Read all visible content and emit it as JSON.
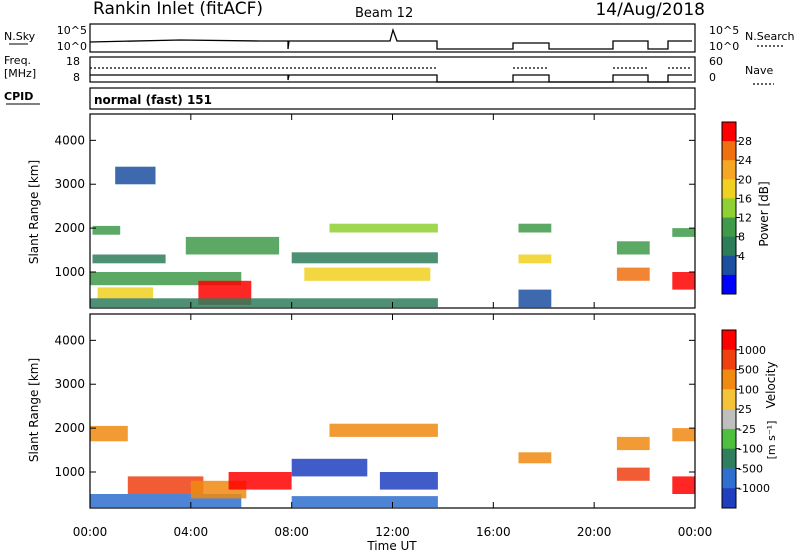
{
  "header": {
    "station": "Rankin Inlet (fitACF)",
    "beam": "Beam 12",
    "date": "14/Aug/2018"
  },
  "params_panels": {
    "nsky_label": "N.Sky",
    "nsearch_label": "N.Search",
    "nsky_ticks": [
      "10^5",
      "10^0"
    ],
    "nsearch_ticks": [
      "10^5",
      "10^0"
    ],
    "freq_label": "Freq.",
    "freq_unit": "[MHz]",
    "freq_ticks": [
      "18",
      "8"
    ],
    "nave_label": "Nave",
    "nave_ticks": [
      "60",
      "0"
    ],
    "cpid_label": "CPID",
    "cpid_value": "normal (fast) 151"
  },
  "chart_data": [
    {
      "type": "heatmap",
      "id": "power",
      "ylabel": "Slant Range [km]",
      "yticks": [
        "4000",
        "3000",
        "2000",
        "1000"
      ],
      "ylim": [
        180,
        4600
      ],
      "xlim_hours": [
        0,
        24
      ],
      "colorbar_label": "Power [dB]",
      "colorbar_ticks": [
        "28",
        "24",
        "20",
        "16",
        "12",
        "8",
        "4"
      ],
      "colors": [
        "#0000ff",
        "#1c4fa0",
        "#2e7d5a",
        "#3f9a4a",
        "#8fd033",
        "#f0d020",
        "#f5a623",
        "#f07010",
        "#ff0000"
      ],
      "data_gaps_hours": [
        [
          13.85,
          17.0
        ],
        [
          18.3,
          20.9
        ],
        [
          22.25,
          23.1
        ]
      ],
      "bands": [
        {
          "t": [
            0.1,
            1.2
          ],
          "r": [
            1850,
            2050
          ],
          "v": 14
        },
        {
          "t": [
            0.1,
            3.0
          ],
          "r": [
            1200,
            1400
          ],
          "v": 9
        },
        {
          "t": [
            0.0,
            6.0
          ],
          "r": [
            700,
            1000
          ],
          "v": 12
        },
        {
          "t": [
            0.3,
            2.5
          ],
          "r": [
            400,
            650
          ],
          "v": 20
        },
        {
          "t": [
            4.3,
            6.4
          ],
          "r": [
            250,
            800
          ],
          "v": 28
        },
        {
          "t": [
            0.0,
            13.8
          ],
          "r": [
            200,
            400
          ],
          "v": 10
        },
        {
          "t": [
            3.8,
            7.5
          ],
          "r": [
            1400,
            1800
          ],
          "v": 13
        },
        {
          "t": [
            9.5,
            13.8
          ],
          "r": [
            1900,
            2100
          ],
          "v": 17
        },
        {
          "t": [
            8.5,
            13.5
          ],
          "r": [
            800,
            1100
          ],
          "v": 18
        },
        {
          "t": [
            8.0,
            13.8
          ],
          "r": [
            1200,
            1450
          ],
          "v": 11
        },
        {
          "t": [
            17.0,
            18.3
          ],
          "r": [
            1900,
            2100
          ],
          "v": 13
        },
        {
          "t": [
            17.0,
            18.3
          ],
          "r": [
            1200,
            1400
          ],
          "v": 18
        },
        {
          "t": [
            17.0,
            18.3
          ],
          "r": [
            200,
            600
          ],
          "v": 8
        },
        {
          "t": [
            20.9,
            22.2
          ],
          "r": [
            1400,
            1700
          ],
          "v": 14
        },
        {
          "t": [
            20.9,
            22.2
          ],
          "r": [
            800,
            1100
          ],
          "v": 24
        },
        {
          "t": [
            23.1,
            24.0
          ],
          "r": [
            1800,
            2000
          ],
          "v": 14
        },
        {
          "t": [
            23.1,
            24.0
          ],
          "r": [
            600,
            1000
          ],
          "v": 28
        },
        {
          "t": [
            1.0,
            2.6
          ],
          "r": [
            3000,
            3400
          ],
          "v": 6
        }
      ]
    },
    {
      "type": "heatmap",
      "id": "velocity",
      "ylabel": "Slant Range [km]",
      "yticks": [
        "4000",
        "3000",
        "2000",
        "1000"
      ],
      "ylim": [
        180,
        4600
      ],
      "xlim_hours": [
        0,
        24
      ],
      "xticks": [
        "00:00",
        "04:00",
        "08:00",
        "12:00",
        "16:00",
        "20:00",
        "00:00"
      ],
      "xlabel": "Time UT",
      "colorbar_label": "Velocity",
      "colorbar_unit": "[m s⁻¹]",
      "colorbar_ticks": [
        "1000",
        "500",
        "100",
        "25",
        "-25",
        "-100",
        "-500",
        "-1000"
      ],
      "colors": [
        "#1f3fbf",
        "#2f6fcf",
        "#2f7f5f",
        "#4fbf3f",
        "#bfbfbf",
        "#f5c33a",
        "#f08a10",
        "#f04010",
        "#ff0000"
      ],
      "data_gaps_hours": [
        [
          13.85,
          17.0
        ],
        [
          18.3,
          20.9
        ],
        [
          22.25,
          23.1
        ]
      ],
      "bands": [
        {
          "t": [
            0.0,
            1.5
          ],
          "r": [
            1700,
            2050
          ],
          "v": 25
        },
        {
          "t": [
            0.0,
            6.0
          ],
          "r": [
            200,
            500
          ],
          "v": -100
        },
        {
          "t": [
            1.5,
            4.5
          ],
          "r": [
            500,
            900
          ],
          "v": 100
        },
        {
          "t": [
            4.0,
            6.2
          ],
          "r": [
            400,
            800
          ],
          "v": 25
        },
        {
          "t": [
            5.5,
            8.0
          ],
          "r": [
            600,
            1000
          ],
          "v": 500
        },
        {
          "t": [
            8.0,
            11.0
          ],
          "r": [
            900,
            1300
          ],
          "v": -500
        },
        {
          "t": [
            9.5,
            13.8
          ],
          "r": [
            1800,
            2100
          ],
          "v": 25
        },
        {
          "t": [
            11.5,
            13.8
          ],
          "r": [
            600,
            1000
          ],
          "v": -1000
        },
        {
          "t": [
            8.0,
            13.8
          ],
          "r": [
            200,
            450
          ],
          "v": -100
        },
        {
          "t": [
            17.0,
            18.3
          ],
          "r": [
            1200,
            1450
          ],
          "v": 25
        },
        {
          "t": [
            20.9,
            22.2
          ],
          "r": [
            1500,
            1800
          ],
          "v": 25
        },
        {
          "t": [
            20.9,
            22.2
          ],
          "r": [
            800,
            1100
          ],
          "v": 100
        },
        {
          "t": [
            23.1,
            24.0
          ],
          "r": [
            1700,
            2000
          ],
          "v": 25
        },
        {
          "t": [
            23.1,
            24.0
          ],
          "r": [
            500,
            900
          ],
          "v": 500
        }
      ]
    }
  ]
}
